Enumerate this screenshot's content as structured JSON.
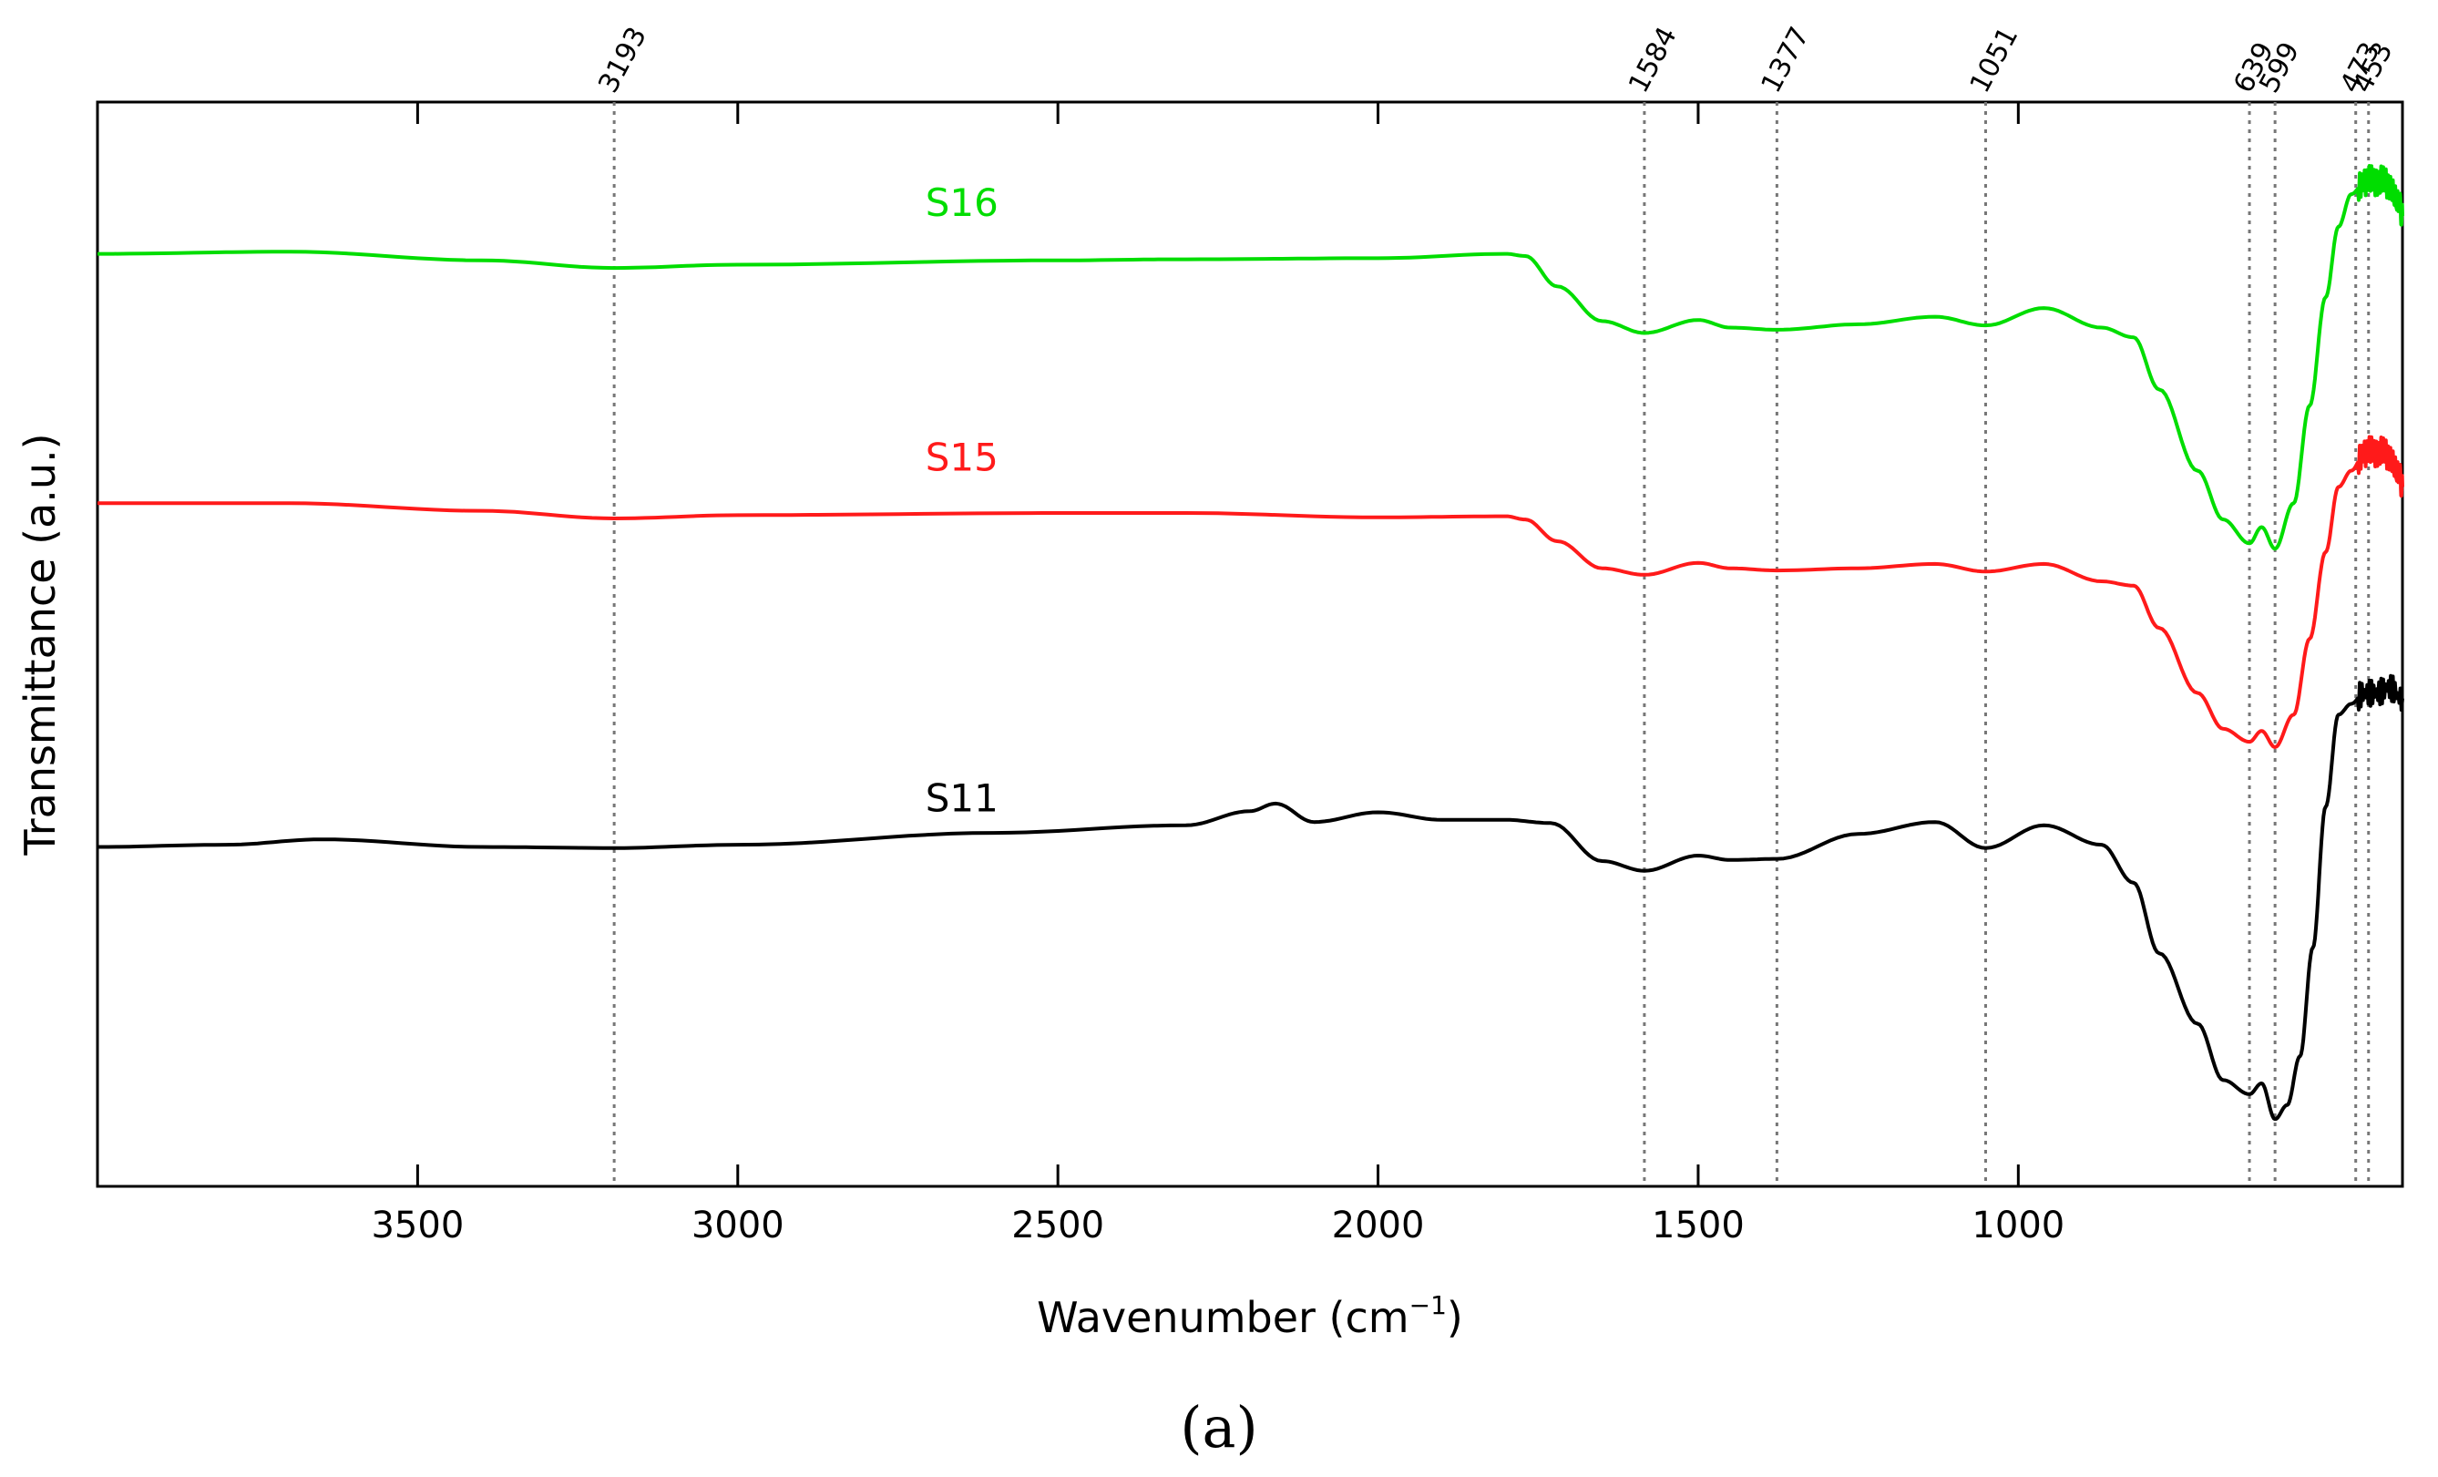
{
  "chart_data": {
    "type": "line",
    "title": "",
    "xlabel": "Wavenumber (cm",
    "xlabel_sup": "−1",
    "xlabel_close": ")",
    "ylabel": "Transmittance (a.u.)",
    "xlim": [
      4000,
      400
    ],
    "x_inverted": true,
    "ylim": [
      0,
      100
    ],
    "grid": false,
    "x_ticks": [
      3500,
      3000,
      2500,
      2000,
      1500,
      1000
    ],
    "x_tick_labels": [
      "3500",
      "3000",
      "2500",
      "2000",
      "1500",
      "1000"
    ],
    "peak_lines": [
      3193,
      1584,
      1377,
      1051,
      639,
      599,
      473,
      453
    ],
    "peak_labels": [
      "3193",
      "1584",
      "1377",
      "1051",
      "639",
      "599",
      "473",
      "453"
    ],
    "series": [
      {
        "name": "S16",
        "color": "#00dd00",
        "x": [
          4000,
          3700,
          3400,
          3193,
          3000,
          2500,
          2300,
          2000,
          1800,
          1770,
          1720,
          1650,
          1584,
          1500,
          1450,
          1377,
          1250,
          1130,
          1051,
          960,
          870,
          820,
          780,
          720,
          680,
          639,
          620,
          599,
          570,
          545,
          520,
          500,
          480,
          460,
          450,
          440,
          430,
          420,
          405,
          400
        ],
        "y": [
          86.0,
          86.2,
          85.4,
          84.7,
          85.0,
          85.4,
          85.5,
          85.6,
          86.0,
          85.8,
          83.0,
          79.8,
          78.7,
          79.9,
          79.2,
          79.0,
          79.5,
          80.2,
          79.4,
          81.0,
          79.2,
          78.3,
          73.5,
          66.0,
          61.5,
          59.3,
          60.8,
          58.8,
          63.0,
          72.0,
          82.0,
          88.5,
          91.5,
          92.5,
          93.0,
          92.5,
          93.0,
          92.0,
          90.5,
          89.5
        ]
      },
      {
        "name": "S15",
        "color": "#ff1a1a",
        "x": [
          4000,
          3700,
          3400,
          3193,
          3000,
          2500,
          2300,
          2000,
          1800,
          1770,
          1720,
          1650,
          1584,
          1500,
          1450,
          1377,
          1250,
          1130,
          1051,
          960,
          870,
          820,
          780,
          720,
          680,
          639,
          620,
          599,
          570,
          545,
          520,
          500,
          480,
          460,
          450,
          440,
          430,
          420,
          405,
          400
        ],
        "y": [
          63.0,
          63.0,
          62.3,
          61.6,
          61.9,
          62.1,
          62.1,
          61.7,
          61.8,
          61.5,
          59.5,
          57.0,
          56.4,
          57.5,
          57.0,
          56.8,
          57.0,
          57.4,
          56.7,
          57.4,
          55.8,
          55.4,
          51.5,
          45.5,
          42.2,
          41.0,
          42.0,
          40.5,
          43.5,
          50.5,
          58.5,
          64.5,
          66.0,
          67.5,
          68.0,
          67.5,
          68.0,
          67.0,
          65.5,
          64.5
        ]
      },
      {
        "name": "S11",
        "color": "#000000",
        "x": [
          4000,
          3800,
          3650,
          3400,
          3193,
          3000,
          2600,
          2300,
          2200,
          2160,
          2100,
          2000,
          1900,
          1800,
          1730,
          1650,
          1584,
          1500,
          1450,
          1377,
          1250,
          1130,
          1051,
          960,
          870,
          820,
          780,
          720,
          680,
          639,
          620,
          599,
          580,
          560,
          540,
          520,
          500,
          480,
          460,
          440,
          420,
          400
        ],
        "y": [
          31.3,
          31.5,
          32.0,
          31.3,
          31.2,
          31.5,
          32.6,
          33.3,
          34.6,
          35.3,
          33.6,
          34.5,
          33.8,
          33.8,
          33.5,
          30.0,
          29.1,
          30.5,
          30.1,
          30.2,
          32.5,
          33.6,
          31.2,
          33.3,
          31.5,
          28.0,
          21.5,
          15.0,
          9.8,
          8.5,
          9.5,
          6.2,
          7.5,
          12.0,
          22.0,
          35.0,
          43.5,
          44.5,
          45.5,
          45.5,
          46.0,
          45.0
        ]
      }
    ],
    "series_labels": [
      {
        "name": "S16",
        "x": 2650,
        "y": 89.5
      },
      {
        "name": "S15",
        "x": 2650,
        "y": 66.0
      },
      {
        "name": "S11",
        "x": 2650,
        "y": 34.6
      }
    ]
  },
  "caption": "(a)"
}
